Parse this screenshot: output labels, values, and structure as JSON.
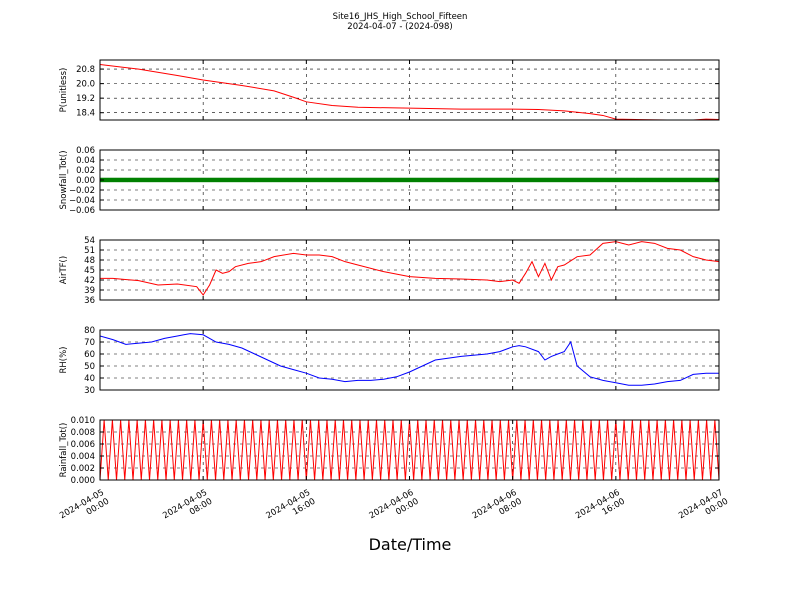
{
  "title": {
    "line1": "Site16_JHS_High_School_Fifteen",
    "line2": "2024-04-07 - (2024-098)"
  },
  "xlabel": "Date/Time",
  "chart_data": {
    "type": "line",
    "x_range": [
      "2024-04-05 00:00",
      "2024-04-07 00:00"
    ],
    "x_ticks": [
      {
        "value": "2024-04-05 00:00",
        "line1": "2024-04-05",
        "line2": "00:00"
      },
      {
        "value": "2024-04-05 08:00",
        "line1": "2024-04-05",
        "line2": "08:00"
      },
      {
        "value": "2024-04-05 16:00",
        "line1": "2024-04-05",
        "line2": "16:00"
      },
      {
        "value": "2024-04-06 00:00",
        "line1": "2024-04-06",
        "line2": "00:00"
      },
      {
        "value": "2024-04-06 08:00",
        "line1": "2024-04-06",
        "line2": "08:00"
      },
      {
        "value": "2024-04-06 16:00",
        "line1": "2024-04-06",
        "line2": "16:00"
      },
      {
        "value": "2024-04-07 00:00",
        "line1": "2024-04-07",
        "line2": "00:00"
      }
    ],
    "grid": true,
    "panels": [
      {
        "ylabel": "P(unitless)",
        "color": "#ff0000",
        "ylim": [
          18.0,
          21.3
        ],
        "yticks": [
          18.4,
          19.2,
          20.0,
          20.8
        ],
        "tick_labels": [
          "18.4",
          "19.2",
          "20.0",
          "20.8"
        ],
        "x": [
          "2024-04-05 00:00",
          "2024-04-05 03:00",
          "2024-04-05 06:00",
          "2024-04-05 08:00",
          "2024-04-05 11:00",
          "2024-04-05 13:30",
          "2024-04-05 15:00",
          "2024-04-05 16:00",
          "2024-04-05 18:00",
          "2024-04-05 20:00",
          "2024-04-06 00:00",
          "2024-04-06 04:00",
          "2024-04-06 08:00",
          "2024-04-06 10:00",
          "2024-04-06 12:00",
          "2024-04-06 14:00",
          "2024-04-06 15:00",
          "2024-04-06 16:00",
          "2024-04-06 18:00",
          "2024-04-06 20:00",
          "2024-04-06 22:00",
          "2024-04-06 23:00",
          "2024-04-07 00:00"
        ],
        "y": [
          21.05,
          20.8,
          20.45,
          20.2,
          19.9,
          19.6,
          19.25,
          19.0,
          18.8,
          18.7,
          18.65,
          18.6,
          18.6,
          18.58,
          18.5,
          18.35,
          18.25,
          18.05,
          18.02,
          18.0,
          18.0,
          18.05,
          18.03
        ]
      },
      {
        "ylabel": "Snowfall_Tot()",
        "color": "#008000",
        "ylim": [
          -0.06,
          0.06
        ],
        "yticks": [
          -0.06,
          -0.04,
          -0.02,
          0.0,
          0.02,
          0.04,
          0.06
        ],
        "tick_labels": [
          "−0.06",
          "−0.04",
          "−0.02",
          "0.00",
          "0.02",
          "0.04",
          "0.06"
        ],
        "x": [
          "2024-04-05 00:00",
          "2024-04-07 00:00"
        ],
        "y": [
          0.0,
          0.0
        ],
        "marker": "dot"
      },
      {
        "ylabel": "AirTF()",
        "color": "#ff0000",
        "ylim": [
          36,
          54
        ],
        "yticks": [
          36,
          39,
          42,
          45,
          48,
          51,
          54
        ],
        "tick_labels": [
          "36",
          "39",
          "42",
          "45",
          "48",
          "51",
          "54"
        ],
        "x": [
          "2024-04-05 00:00",
          "2024-04-05 01:00",
          "2024-04-05 03:00",
          "2024-04-05 04:30",
          "2024-04-05 06:00",
          "2024-04-05 07:30",
          "2024-04-05 08:00",
          "2024-04-05 08:30",
          "2024-04-05 09:00",
          "2024-04-05 09:30",
          "2024-04-05 10:00",
          "2024-04-05 10:30",
          "2024-04-05 11:30",
          "2024-04-05 12:30",
          "2024-04-05 13:30",
          "2024-04-05 15:00",
          "2024-04-05 16:00",
          "2024-04-05 17:00",
          "2024-04-05 18:00",
          "2024-04-05 19:00",
          "2024-04-05 20:00",
          "2024-04-05 22:00",
          "2024-04-06 00:00",
          "2024-04-06 02:00",
          "2024-04-06 04:00",
          "2024-04-06 06:00",
          "2024-04-06 07:00",
          "2024-04-06 08:00",
          "2024-04-06 08:30",
          "2024-04-06 09:00",
          "2024-04-06 09:30",
          "2024-04-06 10:00",
          "2024-04-06 10:30",
          "2024-04-06 11:00",
          "2024-04-06 11:30",
          "2024-04-06 12:00",
          "2024-04-06 13:00",
          "2024-04-06 14:00",
          "2024-04-06 15:00",
          "2024-04-06 16:00",
          "2024-04-06 17:00",
          "2024-04-06 18:00",
          "2024-04-06 19:00",
          "2024-04-06 20:00",
          "2024-04-06 21:00",
          "2024-04-06 22:00",
          "2024-04-06 23:00",
          "2024-04-07 00:00"
        ],
        "y": [
          42.5,
          42.5,
          41.8,
          40.5,
          40.8,
          40.0,
          37.5,
          40.5,
          45.0,
          44.0,
          44.5,
          46.0,
          47.0,
          47.5,
          49.0,
          50.0,
          49.5,
          49.5,
          49.0,
          47.5,
          46.5,
          44.5,
          43.0,
          42.5,
          42.3,
          42.0,
          41.5,
          42.0,
          41.0,
          44.0,
          47.5,
          43.0,
          47.0,
          42.0,
          46.0,
          46.5,
          49.0,
          49.5,
          53.0,
          53.5,
          52.5,
          53.5,
          53.0,
          51.5,
          51.0,
          49.0,
          48.0,
          47.5
        ]
      },
      {
        "ylabel": "RH(%)",
        "color": "#0000ff",
        "ylim": [
          30,
          80
        ],
        "yticks": [
          30,
          40,
          50,
          60,
          70,
          80
        ],
        "tick_labels": [
          "30",
          "40",
          "50",
          "60",
          "70",
          "80"
        ],
        "x": [
          "2024-04-05 00:00",
          "2024-04-05 01:00",
          "2024-04-05 02:00",
          "2024-04-05 04:00",
          "2024-04-05 05:00",
          "2024-04-05 06:00",
          "2024-04-05 06:30",
          "2024-04-05 07:00",
          "2024-04-05 08:00",
          "2024-04-05 09:00",
          "2024-04-05 10:00",
          "2024-04-05 11:00",
          "2024-04-05 12:00",
          "2024-04-05 13:00",
          "2024-04-05 14:00",
          "2024-04-05 15:00",
          "2024-04-05 16:00",
          "2024-04-05 17:00",
          "2024-04-05 18:00",
          "2024-04-05 19:00",
          "2024-04-05 20:00",
          "2024-04-05 21:00",
          "2024-04-05 22:00",
          "2024-04-05 23:00",
          "2024-04-06 00:00",
          "2024-04-06 01:00",
          "2024-04-06 02:00",
          "2024-04-06 04:00",
          "2024-04-06 06:00",
          "2024-04-06 07:00",
          "2024-04-06 08:00",
          "2024-04-06 08:30",
          "2024-04-06 09:00",
          "2024-04-06 10:00",
          "2024-04-06 10:30",
          "2024-04-06 11:00",
          "2024-04-06 11:30",
          "2024-04-06 12:00",
          "2024-04-06 12:30",
          "2024-04-06 13:00",
          "2024-04-06 14:00",
          "2024-04-06 15:00",
          "2024-04-06 16:00",
          "2024-04-06 17:00",
          "2024-04-06 18:00",
          "2024-04-06 19:00",
          "2024-04-06 20:00",
          "2024-04-06 21:00",
          "2024-04-06 22:00",
          "2024-04-06 23:00",
          "2024-04-07 00:00"
        ],
        "y": [
          75,
          72,
          68,
          70,
          73,
          75,
          76,
          77,
          76,
          70,
          68,
          65,
          60,
          55,
          50,
          47,
          44,
          40,
          39,
          37,
          38,
          38,
          39,
          41,
          45,
          50,
          55,
          58,
          60,
          62,
          66,
          67,
          66,
          62,
          55,
          58,
          60,
          62,
          70,
          50,
          41,
          38,
          36,
          34,
          34,
          35,
          37,
          38,
          43,
          44,
          44
        ]
      },
      {
        "ylabel": "Rainfall_Tot()",
        "color": "#ff0000",
        "ylim": [
          0.0,
          0.01
        ],
        "yticks": [
          0.0,
          0.002,
          0.004,
          0.006,
          0.008,
          0.01
        ],
        "tick_labels": [
          "0.000",
          "0.002",
          "0.004",
          "0.006",
          "0.008",
          "0.010"
        ],
        "x_start": "2024-04-05 00:00",
        "x_end": "2024-04-07 00:00",
        "oscillation_cycles": 75,
        "y_values": [
          0.0,
          0.01
        ]
      }
    ]
  }
}
